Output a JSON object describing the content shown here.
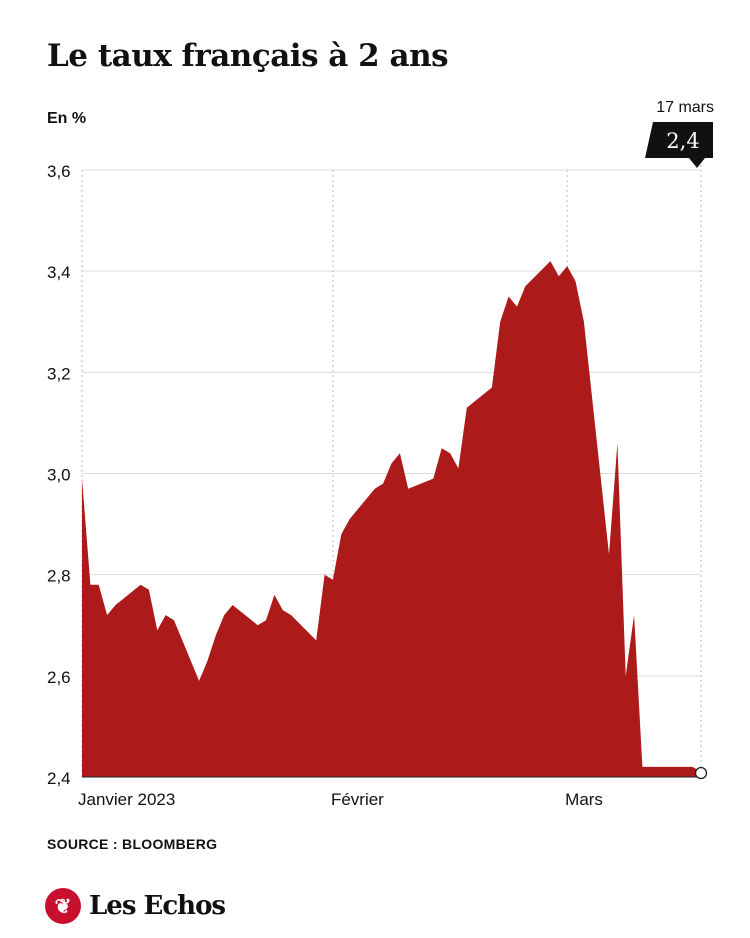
{
  "header": {
    "title": "Le taux français à 2 ans",
    "unit": "En %"
  },
  "footer": {
    "source": "SOURCE : BLOOMBERG",
    "logo_text": "Les Echos",
    "logo_icon": "les-echos-bird-icon",
    "logo_color": "#c8102e"
  },
  "chart_data": {
    "type": "area",
    "title": "Le taux français à 2 ans",
    "ylabel": "En %",
    "xlabel": "",
    "ylim": [
      2.4,
      3.6
    ],
    "yticks": [
      2.4,
      2.6,
      2.8,
      3.0,
      3.2,
      3.4,
      3.6
    ],
    "ytick_labels": [
      "2,4",
      "2,6",
      "2,8",
      "3,0",
      "3,2",
      "3,4",
      "3,6"
    ],
    "grid": true,
    "xtick_labels": [
      "Janvier 2023",
      "Février",
      "Mars"
    ],
    "x_range": [
      "2023-01-02",
      "2023-03-17"
    ],
    "xtick_dates": [
      "2023-01-02",
      "2023-02-01",
      "2023-03-01"
    ],
    "fill_color": "#ad1a1a",
    "annotation": {
      "date_label": "17 mars",
      "value_label": "2,4"
    },
    "series": [
      {
        "x": [
          "2023-01-02",
          "2023-01-03",
          "2023-01-04",
          "2023-01-05",
          "2023-01-06",
          "2023-01-09",
          "2023-01-10",
          "2023-01-11",
          "2023-01-12",
          "2023-01-13",
          "2023-01-16",
          "2023-01-17",
          "2023-01-18",
          "2023-01-19",
          "2023-01-20",
          "2023-01-23",
          "2023-01-24",
          "2023-01-25",
          "2023-01-26",
          "2023-01-27",
          "2023-01-30",
          "2023-01-31",
          "2023-02-01",
          "2023-02-02",
          "2023-02-03",
          "2023-02-06",
          "2023-02-07",
          "2023-02-08",
          "2023-02-09",
          "2023-02-10",
          "2023-02-13",
          "2023-02-14",
          "2023-02-15",
          "2023-02-16",
          "2023-02-17",
          "2023-02-20",
          "2023-02-21",
          "2023-02-22",
          "2023-02-23",
          "2023-02-24",
          "2023-02-27",
          "2023-02-28",
          "2023-03-01",
          "2023-03-02",
          "2023-03-03",
          "2023-03-06",
          "2023-03-07",
          "2023-03-08",
          "2023-03-09",
          "2023-03-10",
          "2023-03-13",
          "2023-03-14",
          "2023-03-15",
          "2023-03-16",
          "2023-03-17"
        ],
        "values": [
          2.99,
          2.78,
          2.78,
          2.72,
          2.74,
          2.78,
          2.77,
          2.69,
          2.72,
          2.71,
          2.59,
          2.63,
          2.68,
          2.72,
          2.74,
          2.7,
          2.71,
          2.76,
          2.73,
          2.72,
          2.67,
          2.8,
          2.79,
          2.88,
          2.91,
          2.97,
          2.98,
          3.02,
          3.04,
          2.97,
          2.99,
          3.05,
          3.04,
          3.01,
          3.13,
          3.17,
          3.3,
          3.35,
          3.33,
          3.37,
          3.42,
          3.39,
          3.41,
          3.38,
          3.3,
          2.84,
          3.06,
          2.6,
          2.72,
          2.42,
          2.42,
          2.42,
          2.42,
          2.42,
          2.41
        ]
      }
    ]
  }
}
